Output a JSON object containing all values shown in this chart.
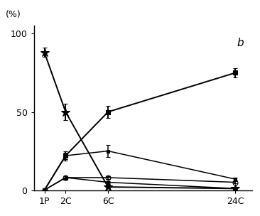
{
  "x_positions": [
    0,
    1,
    3,
    9
  ],
  "x_labels": [
    "1P",
    "2C",
    "6C",
    "24C"
  ],
  "ylim": [
    0,
    105
  ],
  "yticks": [
    0,
    50,
    100
  ],
  "annotation": "b",
  "lines": [
    {
      "label": "line1_star",
      "y": [
        88,
        50,
        2,
        1
      ],
      "yerr": [
        3,
        5,
        1,
        0.5
      ],
      "marker": "*",
      "markersize": 9,
      "linewidth": 1.4
    },
    {
      "label": "line2_sq_filled",
      "y": [
        0,
        22,
        50,
        75
      ],
      "yerr": [
        0.5,
        3,
        4,
        3
      ],
      "marker": "s",
      "markersize": 5,
      "linewidth": 1.4,
      "fillstyle": "full"
    },
    {
      "label": "line3_sq_small",
      "y": [
        0,
        22,
        25,
        7
      ],
      "yerr": [
        0.5,
        2,
        4,
        1
      ],
      "marker": "s",
      "markersize": 3,
      "linewidth": 1.1,
      "fillstyle": "full"
    },
    {
      "label": "line4_circle_open",
      "y": [
        0,
        8,
        8,
        5
      ],
      "yerr": [
        0.3,
        1,
        1,
        0.5
      ],
      "marker": "o",
      "markersize": 5,
      "linewidth": 1.1,
      "fillstyle": "none"
    },
    {
      "label": "line5_triangle",
      "y": [
        0,
        8,
        5,
        1
      ],
      "yerr": [
        0.3,
        1,
        0.5,
        0.3
      ],
      "marker": "^",
      "markersize": 4,
      "linewidth": 1.1,
      "fillstyle": "full"
    }
  ],
  "background_color": "#ffffff"
}
